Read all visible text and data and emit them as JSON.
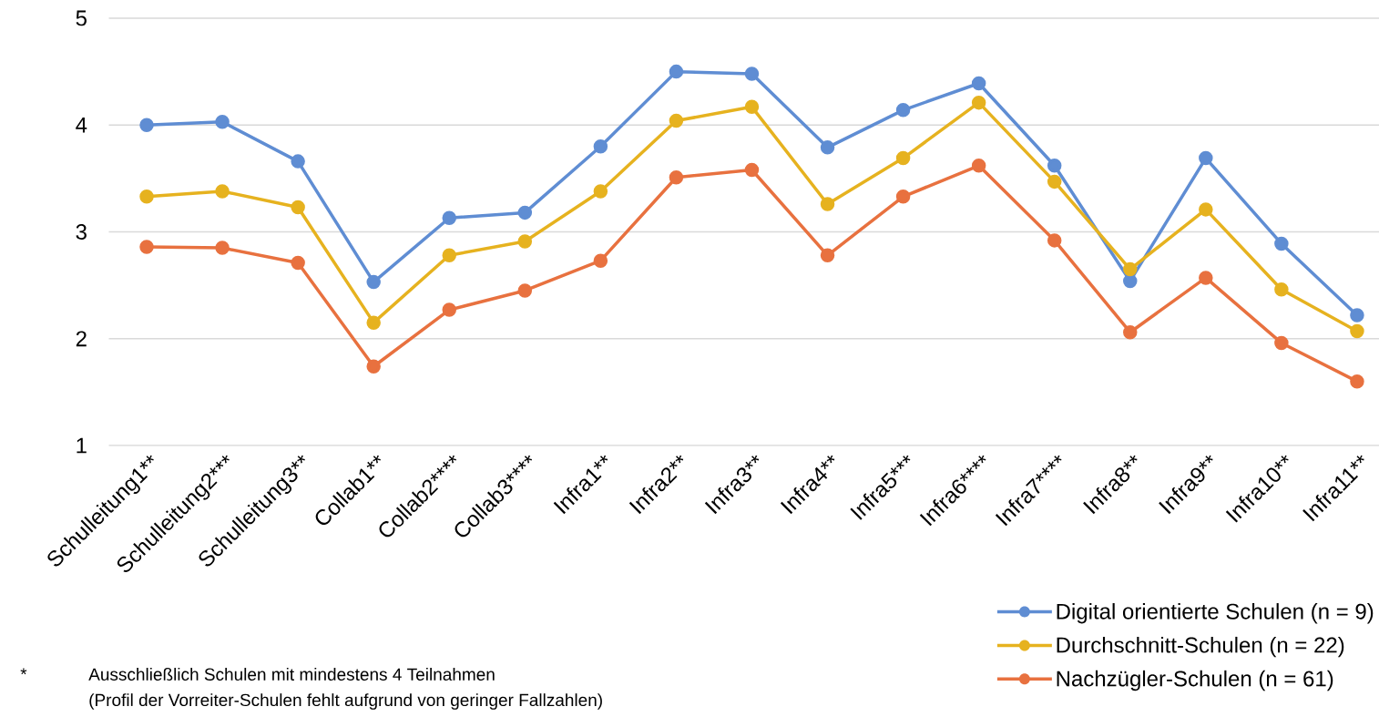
{
  "chart_data": {
    "type": "line",
    "categories": [
      "Schulleitung1**",
      "Schulleitung2***",
      "Schulleitung3**",
      "Collab1**",
      "Collab2****",
      "Collab3****",
      "Infra1**",
      "Infra2**",
      "Infra3**",
      "Infra4**",
      "Infra5***",
      "Infra6****",
      "Infra7****",
      "Infra8**",
      "Infra9**",
      "Infra10**",
      "Infra11**"
    ],
    "series": [
      {
        "name": "Digital orientierte Schulen (n = 9)",
        "color": "#5f8dd3",
        "values": [
          4.0,
          4.03,
          3.66,
          2.53,
          3.13,
          3.18,
          3.8,
          4.5,
          4.48,
          3.79,
          4.14,
          4.39,
          3.62,
          2.54,
          3.69,
          2.89,
          2.22
        ]
      },
      {
        "name": "Durchschnitt-Schulen (n = 22)",
        "color": "#e6b21f",
        "values": [
          3.33,
          3.38,
          3.23,
          2.15,
          2.78,
          2.91,
          3.38,
          4.04,
          4.17,
          3.26,
          3.69,
          4.21,
          3.47,
          2.65,
          3.21,
          2.46,
          2.07
        ]
      },
      {
        "name": "Nachzügler-Schulen (n = 61)",
        "color": "#e8713f",
        "values": [
          2.86,
          2.85,
          2.71,
          1.74,
          2.27,
          2.45,
          2.73,
          3.51,
          3.58,
          2.78,
          3.33,
          3.62,
          2.92,
          2.06,
          2.57,
          1.96,
          1.6
        ]
      }
    ],
    "ylim": [
      1,
      5
    ],
    "yticks": [
      1,
      2,
      3,
      4,
      5
    ],
    "grid": "y",
    "legend": "bottom right",
    "marker": "circle",
    "line_style": "solid",
    "annotations": [
      "*",
      "Ausschließlich Schulen mit mindestens 4 Teilnahmen",
      "(Profil der Vorreiter-Schulen fehlt aufgrund von geringer Fallzahlen)"
    ]
  }
}
